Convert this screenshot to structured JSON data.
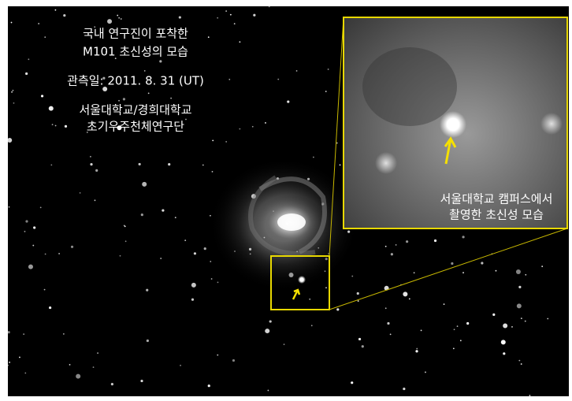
{
  "title": {
    "lines": [
      "국내 연구진이 포착한",
      "M101 초신성의 모습"
    ]
  },
  "observation_date": "관측일: 2011. 8. 31 (UT)",
  "institution": {
    "lines": [
      "서울대학교/경희대학교",
      "초기우주천체연구단"
    ]
  },
  "inset_caption": {
    "lines": [
      "서울대학교 캠퍼스에서",
      "촬영한 초신성 모습"
    ]
  }
}
